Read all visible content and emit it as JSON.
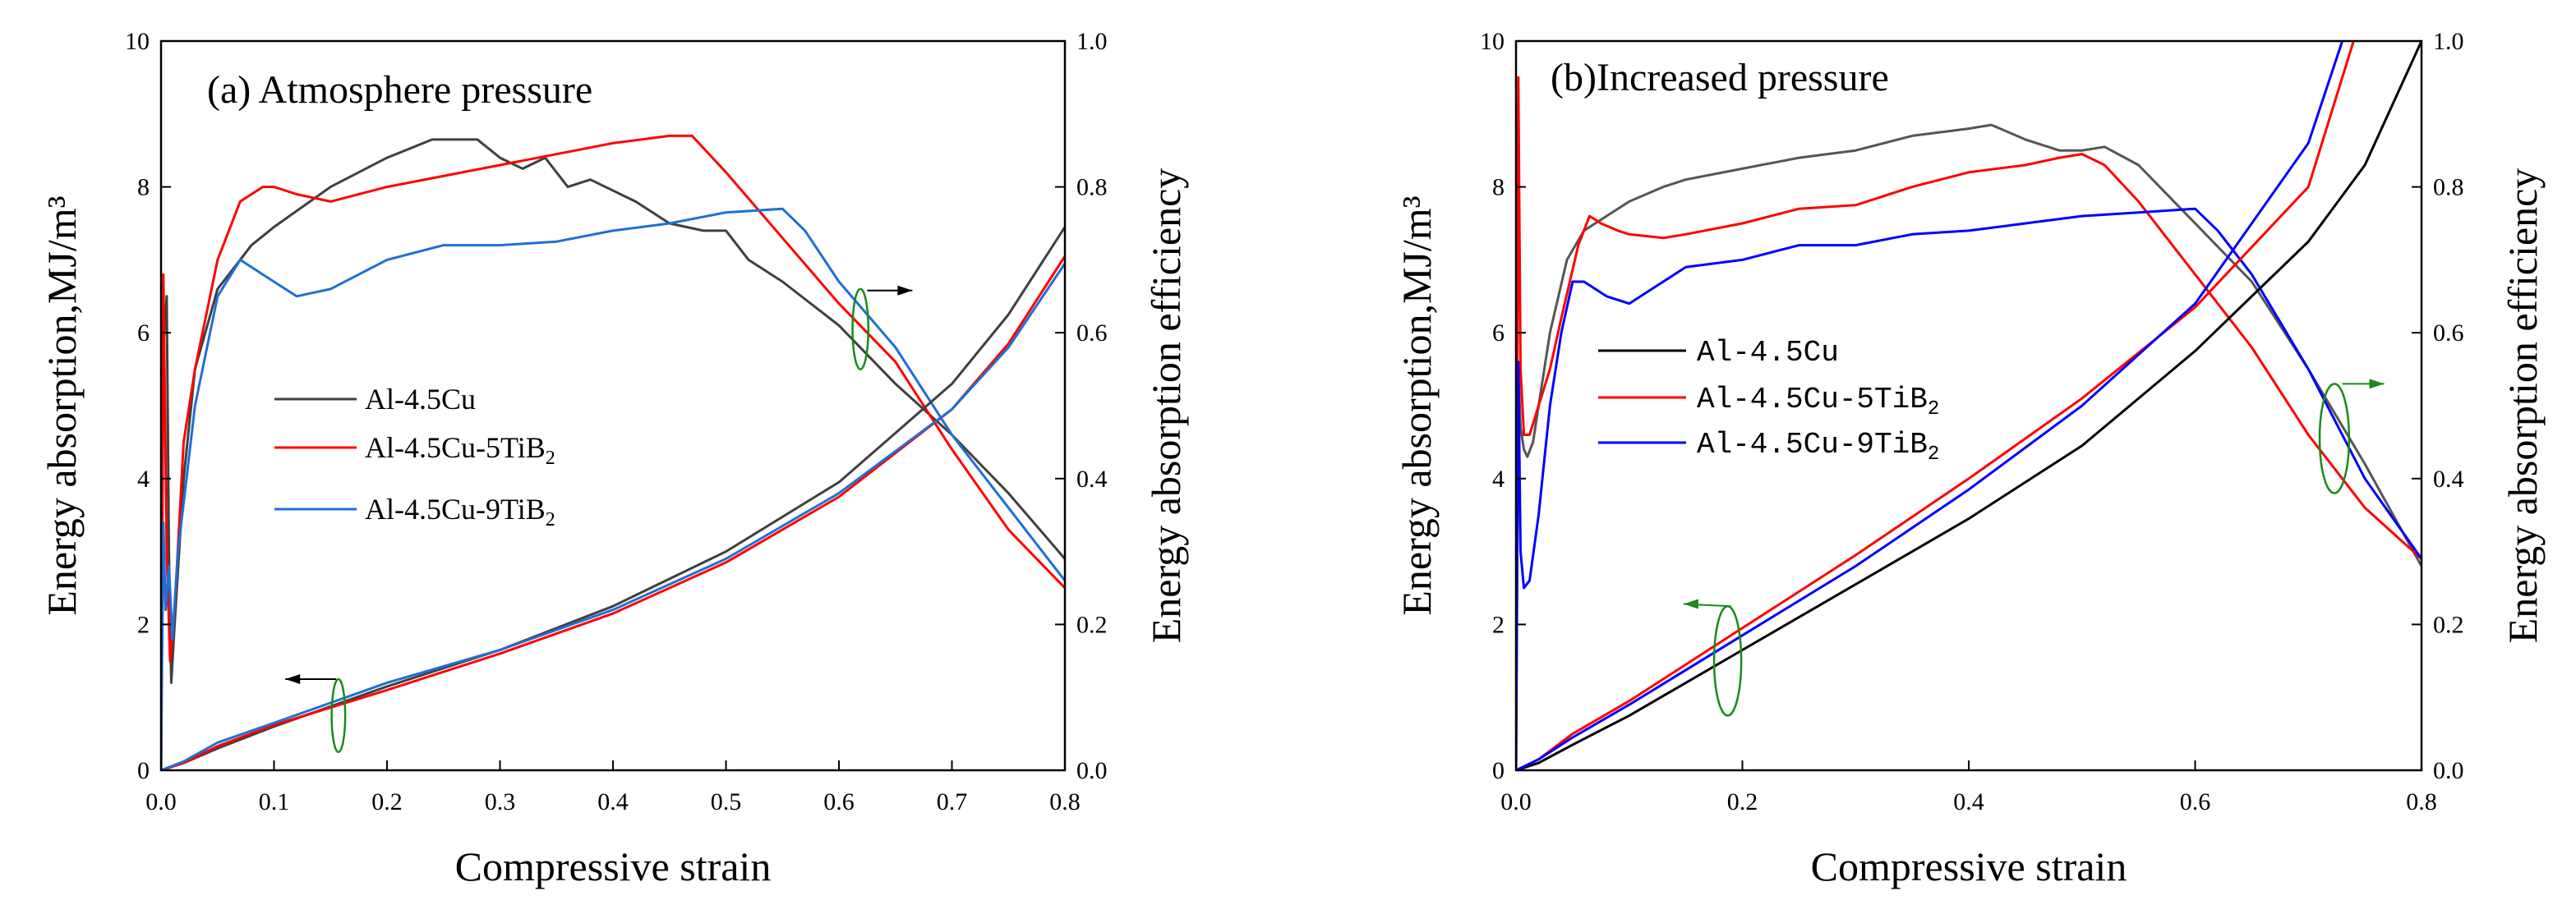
{
  "chart_data": [
    {
      "id": "a",
      "type": "line",
      "title": "(a) Atmosphere pressure",
      "xlabel": "Compressive strain",
      "ylabel": "Energy absorption,MJ/m³",
      "y2label": "Energy absorption efficiency",
      "xlim": [
        0.0,
        0.8
      ],
      "ylim": [
        0,
        10
      ],
      "y2lim": [
        0.0,
        1.0
      ],
      "xticks": [
        "0.0",
        "0.1",
        "0.2",
        "0.3",
        "0.4",
        "0.5",
        "0.6",
        "0.7",
        "0.8"
      ],
      "yticks": [
        "0",
        "2",
        "4",
        "6",
        "8",
        "10"
      ],
      "y2ticks": [
        "0.0",
        "0.2",
        "0.4",
        "0.6",
        "0.8",
        "1.0"
      ],
      "legend_style": "serif",
      "legend": [
        {
          "base": "Al-4.5Cu",
          "sub": "",
          "color": "#404040"
        },
        {
          "base": "Al-4.5Cu-5TiB",
          "sub": "2",
          "color": "#ff0000"
        },
        {
          "base": "Al-4.5Cu-9TiB",
          "sub": "2",
          "color": "#1f6fd6"
        }
      ],
      "series": [
        {
          "key": "efficiency",
          "color": "#404040",
          "x": [
            0.0,
            0.002,
            0.005,
            0.007,
            0.009,
            0.012,
            0.02,
            0.03,
            0.05,
            0.07,
            0.08,
            0.1,
            0.15,
            0.2,
            0.24,
            0.28,
            0.3,
            0.32,
            0.34,
            0.36,
            0.38,
            0.42,
            0.45,
            0.48,
            0.5,
            0.52,
            0.55,
            0.6,
            0.65,
            0.7,
            0.75,
            0.8
          ],
          "y": [
            0.0,
            0.58,
            0.65,
            0.3,
            0.12,
            0.2,
            0.4,
            0.55,
            0.66,
            0.7,
            0.72,
            0.745,
            0.8,
            0.84,
            0.865,
            0.865,
            0.84,
            0.825,
            0.84,
            0.8,
            0.81,
            0.78,
            0.75,
            0.74,
            0.74,
            0.7,
            0.67,
            0.61,
            0.53,
            0.46,
            0.38,
            0.29
          ]
        },
        {
          "key": "efficiency",
          "color": "#ff0000",
          "x": [
            0.0,
            0.002,
            0.005,
            0.008,
            0.012,
            0.02,
            0.03,
            0.05,
            0.07,
            0.09,
            0.1,
            0.12,
            0.15,
            0.2,
            0.3,
            0.4,
            0.45,
            0.47,
            0.5,
            0.55,
            0.6,
            0.65,
            0.7,
            0.75,
            0.8
          ],
          "y": [
            0.0,
            0.68,
            0.3,
            0.15,
            0.22,
            0.45,
            0.55,
            0.7,
            0.78,
            0.8,
            0.8,
            0.79,
            0.78,
            0.8,
            0.83,
            0.86,
            0.87,
            0.87,
            0.82,
            0.73,
            0.64,
            0.56,
            0.44,
            0.33,
            0.25
          ]
        },
        {
          "key": "efficiency",
          "color": "#1f6fd6",
          "x": [
            0.0,
            0.002,
            0.004,
            0.007,
            0.01,
            0.015,
            0.03,
            0.05,
            0.07,
            0.09,
            0.12,
            0.15,
            0.2,
            0.25,
            0.3,
            0.35,
            0.4,
            0.45,
            0.5,
            0.55,
            0.57,
            0.6,
            0.65,
            0.7,
            0.75,
            0.8
          ],
          "y": [
            0.0,
            0.34,
            0.22,
            0.28,
            0.18,
            0.3,
            0.5,
            0.65,
            0.7,
            0.68,
            0.65,
            0.66,
            0.7,
            0.72,
            0.72,
            0.725,
            0.74,
            0.75,
            0.765,
            0.77,
            0.74,
            0.67,
            0.58,
            0.46,
            0.36,
            0.26
          ]
        },
        {
          "key": "energy",
          "color": "#404040",
          "x": [
            0.0,
            0.02,
            0.05,
            0.1,
            0.2,
            0.3,
            0.4,
            0.5,
            0.6,
            0.7,
            0.75,
            0.8
          ],
          "y": [
            0.0,
            0.1,
            0.3,
            0.6,
            1.15,
            1.65,
            2.25,
            3.0,
            3.95,
            5.3,
            6.25,
            7.45
          ]
        },
        {
          "key": "energy",
          "color": "#ff0000",
          "x": [
            0.0,
            0.02,
            0.05,
            0.1,
            0.2,
            0.3,
            0.4,
            0.5,
            0.6,
            0.7,
            0.75,
            0.8
          ],
          "y": [
            0.0,
            0.1,
            0.33,
            0.62,
            1.1,
            1.6,
            2.15,
            2.85,
            3.75,
            4.95,
            5.85,
            7.05
          ]
        },
        {
          "key": "energy",
          "color": "#1f6fd6",
          "x": [
            0.0,
            0.02,
            0.05,
            0.1,
            0.2,
            0.3,
            0.4,
            0.5,
            0.6,
            0.7,
            0.75,
            0.8
          ],
          "y": [
            0.0,
            0.12,
            0.38,
            0.65,
            1.2,
            1.65,
            2.2,
            2.9,
            3.8,
            4.95,
            5.8,
            6.95
          ]
        }
      ],
      "annotations": [
        {
          "type": "ellipse",
          "x": 0.157,
          "y": 0.75,
          "rx": 0.006,
          "ry": 0.5,
          "color": "#1a8a1a"
        },
        {
          "type": "arrow",
          "x1": 0.155,
          "y1": 1.25,
          "x2": 0.11,
          "y2": 1.25,
          "color": "#000000"
        },
        {
          "type": "ellipse",
          "x": 0.619,
          "y": 6.05,
          "rx": 0.007,
          "ry": 0.55,
          "color": "#1a8a1a"
        },
        {
          "type": "arrow",
          "x1": 0.625,
          "y1": 6.58,
          "x2": 0.665,
          "y2": 6.58,
          "color": "#000000"
        }
      ]
    },
    {
      "id": "b",
      "type": "line",
      "title": "(b)Increased pressure",
      "xlabel": "Compressive strain",
      "ylabel": "Energy absorption,MJ/m³",
      "y2label": "Energy absorption efficiency",
      "xlim": [
        0.0,
        0.8
      ],
      "ylim": [
        0,
        10
      ],
      "y2lim": [
        0.0,
        1.0
      ],
      "xticks": [
        "0.0",
        "0.2",
        "0.4",
        "0.6",
        "0.8"
      ],
      "yticks": [
        "0",
        "2",
        "4",
        "6",
        "8",
        "10"
      ],
      "y2ticks": [
        "0.0",
        "0.2",
        "0.4",
        "0.6",
        "0.8",
        "1.0"
      ],
      "legend_style": "mono",
      "legend": [
        {
          "base": "Al-4.5Cu",
          "sub": "",
          "color": "#000000"
        },
        {
          "base": "Al-4.5Cu-5TiB",
          "sub": "2",
          "color": "#ff0000"
        },
        {
          "base": "Al-4.5Cu-9TiB",
          "sub": "2",
          "color": "#0000ff"
        }
      ],
      "series": [
        {
          "key": "efficiency",
          "color": "#555555",
          "x": [
            0.0,
            0.002,
            0.004,
            0.007,
            0.01,
            0.015,
            0.02,
            0.03,
            0.045,
            0.06,
            0.08,
            0.1,
            0.13,
            0.15,
            0.2,
            0.25,
            0.3,
            0.35,
            0.4,
            0.42,
            0.45,
            0.48,
            0.5,
            0.52,
            0.55,
            0.6,
            0.65,
            0.7,
            0.75,
            0.8
          ],
          "y": [
            0.0,
            0.55,
            0.47,
            0.44,
            0.43,
            0.45,
            0.5,
            0.6,
            0.7,
            0.74,
            0.76,
            0.78,
            0.8,
            0.81,
            0.825,
            0.84,
            0.85,
            0.87,
            0.88,
            0.885,
            0.865,
            0.85,
            0.85,
            0.855,
            0.83,
            0.75,
            0.67,
            0.55,
            0.42,
            0.28
          ]
        },
        {
          "key": "efficiency",
          "color": "#ff0000",
          "x": [
            0.0,
            0.002,
            0.004,
            0.007,
            0.012,
            0.02,
            0.03,
            0.04,
            0.055,
            0.065,
            0.075,
            0.09,
            0.1,
            0.13,
            0.15,
            0.2,
            0.25,
            0.3,
            0.35,
            0.4,
            0.45,
            0.48,
            0.5,
            0.52,
            0.55,
            0.6,
            0.65,
            0.7,
            0.75,
            0.8
          ],
          "y": [
            0.0,
            0.95,
            0.55,
            0.46,
            0.46,
            0.5,
            0.55,
            0.62,
            0.72,
            0.76,
            0.75,
            0.74,
            0.735,
            0.73,
            0.735,
            0.75,
            0.77,
            0.775,
            0.8,
            0.82,
            0.83,
            0.84,
            0.845,
            0.83,
            0.78,
            0.68,
            0.58,
            0.46,
            0.36,
            0.29
          ]
        },
        {
          "key": "efficiency",
          "color": "#0000ff",
          "x": [
            0.0,
            0.002,
            0.004,
            0.007,
            0.012,
            0.02,
            0.03,
            0.04,
            0.05,
            0.06,
            0.08,
            0.1,
            0.12,
            0.15,
            0.2,
            0.25,
            0.3,
            0.35,
            0.4,
            0.45,
            0.5,
            0.55,
            0.6,
            0.62,
            0.65,
            0.7,
            0.75,
            0.8
          ],
          "y": [
            0.0,
            0.56,
            0.3,
            0.25,
            0.26,
            0.35,
            0.5,
            0.6,
            0.67,
            0.67,
            0.65,
            0.64,
            0.66,
            0.69,
            0.7,
            0.72,
            0.72,
            0.735,
            0.74,
            0.75,
            0.76,
            0.765,
            0.77,
            0.74,
            0.68,
            0.55,
            0.4,
            0.29
          ]
        },
        {
          "key": "energy",
          "color": "#000000",
          "x": [
            0.0,
            0.02,
            0.05,
            0.1,
            0.2,
            0.3,
            0.4,
            0.5,
            0.6,
            0.7,
            0.75,
            0.8
          ],
          "y": [
            0.0,
            0.1,
            0.35,
            0.75,
            1.65,
            2.55,
            3.45,
            4.45,
            5.75,
            7.25,
            8.3,
            10.0
          ]
        },
        {
          "key": "energy",
          "color": "#ff0000",
          "x": [
            0.0,
            0.02,
            0.05,
            0.1,
            0.2,
            0.3,
            0.4,
            0.5,
            0.6,
            0.7,
            0.74
          ],
          "y": [
            0.0,
            0.15,
            0.5,
            0.95,
            1.95,
            2.95,
            4.0,
            5.1,
            6.35,
            8.0,
            10.0
          ]
        },
        {
          "key": "energy",
          "color": "#0000ff",
          "x": [
            0.0,
            0.02,
            0.05,
            0.1,
            0.2,
            0.3,
            0.4,
            0.5,
            0.6,
            0.7,
            0.73
          ],
          "y": [
            0.0,
            0.15,
            0.45,
            0.9,
            1.85,
            2.8,
            3.85,
            5.0,
            6.4,
            8.6,
            10.0
          ]
        }
      ],
      "annotations": [
        {
          "type": "ellipse",
          "x": 0.187,
          "y": 1.5,
          "rx": 0.012,
          "ry": 0.75,
          "color": "#1a8a1a"
        },
        {
          "type": "arrow",
          "x1": 0.19,
          "y1": 2.25,
          "x2": 0.148,
          "y2": 2.28,
          "color": "#1a8a1a"
        },
        {
          "type": "ellipse",
          "x": 0.723,
          "y": 4.55,
          "rx": 0.013,
          "ry": 0.75,
          "color": "#1a8a1a"
        },
        {
          "type": "arrow",
          "x1": 0.73,
          "y1": 5.3,
          "x2": 0.767,
          "y2": 5.3,
          "color": "#1a8a1a"
        }
      ]
    }
  ]
}
